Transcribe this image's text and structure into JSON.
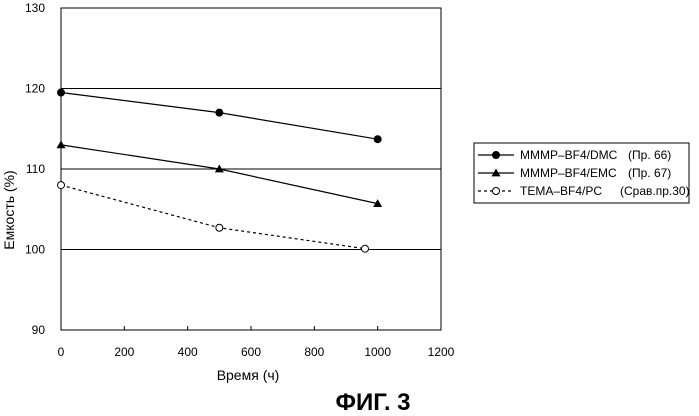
{
  "chart_data": {
    "type": "line",
    "title": "",
    "xlabel": "Время (ч)",
    "ylabel": "Емкость (%)",
    "xlim": [
      0,
      1200
    ],
    "ylim": [
      90,
      130
    ],
    "xticks": [
      0,
      200,
      400,
      600,
      800,
      1000,
      1200
    ],
    "yticks": [
      90,
      100,
      110,
      120,
      130
    ],
    "grid": "horizontal",
    "legend_position": "right",
    "series": [
      {
        "name": "MMMP–BF4/DMC",
        "note": "(Пр. 66)",
        "marker": "filled-circle",
        "line": "solid",
        "x": [
          0,
          500,
          1000
        ],
        "y": [
          119.5,
          117.0,
          113.7
        ]
      },
      {
        "name": "MMMP–BF4/EMC",
        "note": "(Пр. 67)",
        "marker": "filled-triangle",
        "line": "solid",
        "x": [
          0,
          500,
          1000
        ],
        "y": [
          113.0,
          110.0,
          105.7
        ]
      },
      {
        "name": "TEMA–BF4/PC",
        "note": "(Срав.пр.30)",
        "marker": "open-circle",
        "line": "dashed",
        "x": [
          0,
          500,
          960
        ],
        "y": [
          108.0,
          102.7,
          100.1
        ]
      }
    ]
  },
  "caption": "ФИГ. 3",
  "colors": {
    "line": "#000000",
    "background": "#ffffff"
  }
}
